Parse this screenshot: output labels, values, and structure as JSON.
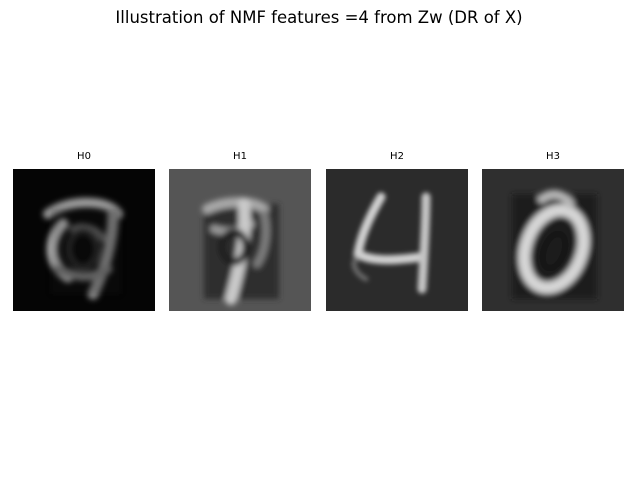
{
  "title": "Illustration of NMF features =4 from Zw (DR of X)",
  "panels": [
    {
      "label": "H0",
      "background": "#050505",
      "image": "faint looped digit (resembling 7/9), bright strokes on black"
    },
    {
      "label": "H1",
      "background": "#555555",
      "image": "looped digit with vertical stem, strokes on medium gray"
    },
    {
      "label": "H2",
      "background": "#2b2b2b",
      "image": "digit 4, light strokes on dark gray"
    },
    {
      "label": "H3",
      "background": "#2f2f2f",
      "image": "digit 0 ring, bright strokes on dark gray"
    }
  ]
}
